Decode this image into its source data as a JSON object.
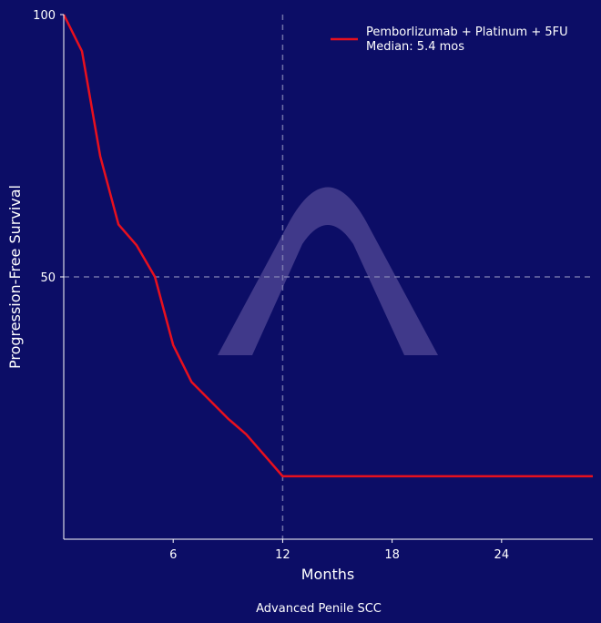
{
  "colors": {
    "background": "#0c0d66",
    "axis": "#ffffff",
    "text": "#ffffff",
    "series": "#e8101e",
    "refline": "#8a8ab8",
    "watermark": "#6b5fa8"
  },
  "watermark_icon": "arch-logo",
  "chart_data": {
    "type": "line",
    "title": "",
    "xlabel": "Months",
    "ylabel": "Progression-Free Survival",
    "caption": "Advanced Penile SCC",
    "xlim": [
      0,
      29
    ],
    "ylim": [
      0,
      100
    ],
    "xticks": [
      6,
      12,
      18,
      24
    ],
    "yticks": [
      50,
      100
    ],
    "grid": false,
    "legend_position": "top-right",
    "legend": [
      "Pemborlizumab + Platinum + 5FU",
      "Median: 5.4 mos"
    ],
    "reference_lines": {
      "x": 12,
      "y": 50
    },
    "series": [
      {
        "name": "Pemborlizumab + Platinum + 5FU",
        "x": [
          0,
          1,
          2,
          3,
          4,
          5,
          6,
          7,
          8,
          9,
          10,
          11,
          12,
          13,
          15,
          18,
          21,
          24,
          27,
          29
        ],
        "y": [
          100,
          93,
          73,
          60,
          56,
          50,
          37,
          30,
          26.5,
          23,
          20,
          16,
          12,
          12,
          12,
          12,
          12,
          12,
          12,
          12
        ]
      }
    ]
  }
}
